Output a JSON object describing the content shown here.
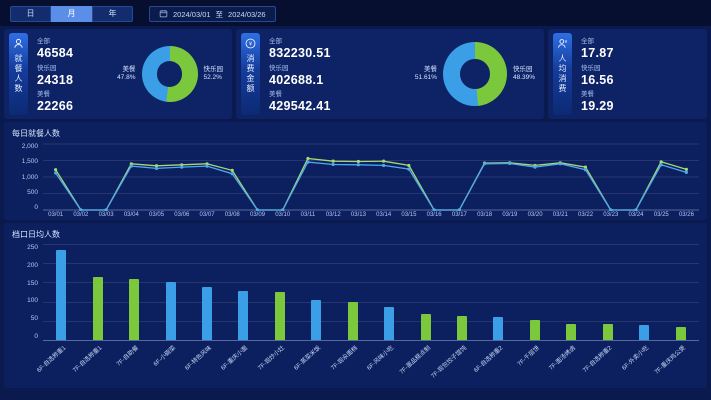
{
  "colors": {
    "accent_blue": "#3B9FE8",
    "accent_green": "#7CC83D",
    "line_blue": "#4FA8EC",
    "line_green": "#A6D970"
  },
  "topbar": {
    "period_tabs": [
      {
        "label": "日",
        "active": false
      },
      {
        "label": "月",
        "active": true
      },
      {
        "label": "年",
        "active": false
      }
    ],
    "date_start": "2024/03/01",
    "date_separator": "至",
    "date_end": "2024/03/26"
  },
  "kpi_panels": [
    {
      "title": "就餐人数",
      "icon": "diners-icon",
      "stats": [
        {
          "label": "全部",
          "value": "46584"
        },
        {
          "label": "快乐园",
          "value": "24318"
        },
        {
          "label": "美餐",
          "value": "22266"
        }
      ],
      "donut": {
        "size": 56,
        "slices": [
          {
            "label": "快乐园",
            "pct": "52.2%",
            "value": 52.2,
            "color_key": "accent_green",
            "side": "right"
          },
          {
            "label": "美餐",
            "pct": "47.8%",
            "value": 47.8,
            "color_key": "accent_blue",
            "side": "left"
          }
        ]
      }
    },
    {
      "title": "消费金额",
      "icon": "amount-icon",
      "stats": [
        {
          "label": "全部",
          "value": "832230.51"
        },
        {
          "label": "快乐园",
          "value": "402688.1"
        },
        {
          "label": "美餐",
          "value": "429542.41"
        }
      ],
      "donut": {
        "size": 64,
        "slices": [
          {
            "label": "快乐园",
            "pct": "48.39%",
            "value": 48.39,
            "color_key": "accent_green",
            "side": "right"
          },
          {
            "label": "美餐",
            "pct": "51.61%",
            "value": 51.61,
            "color_key": "accent_blue",
            "side": "left"
          }
        ]
      }
    },
    {
      "title": "人均消费",
      "icon": "per-capita-icon",
      "stats": [
        {
          "label": "全部",
          "value": "17.87"
        },
        {
          "label": "快乐园",
          "value": "16.56"
        },
        {
          "label": "美餐",
          "value": "19.29"
        }
      ],
      "donut": null
    }
  ],
  "chart_data": [
    {
      "type": "line",
      "title": "每日就餐人数",
      "x": [
        "03/01",
        "03/02",
        "03/03",
        "03/04",
        "03/05",
        "03/06",
        "03/07",
        "03/08",
        "03/09",
        "03/10",
        "03/11",
        "03/12",
        "03/13",
        "03/14",
        "03/15",
        "03/16",
        "03/17",
        "03/18",
        "03/19",
        "03/20",
        "03/21",
        "03/22",
        "03/23",
        "03/24",
        "03/25",
        "03/26"
      ],
      "yticks": [
        "2,000",
        "1,500",
        "1,000",
        "500",
        "0"
      ],
      "ylim": [
        0,
        2000
      ],
      "grid": true,
      "legend": null,
      "series": [
        {
          "name": "green",
          "color_key": "line_green",
          "values": [
            1220,
            0,
            0,
            1400,
            1340,
            1370,
            1400,
            1200,
            0,
            0,
            1560,
            1480,
            1470,
            1480,
            1350,
            0,
            0,
            1420,
            1430,
            1350,
            1430,
            1300,
            0,
            0,
            1460,
            1230
          ]
        },
        {
          "name": "blue",
          "color_key": "line_blue",
          "values": [
            1120,
            0,
            0,
            1330,
            1260,
            1300,
            1330,
            1100,
            0,
            0,
            1450,
            1380,
            1370,
            1350,
            1240,
            0,
            0,
            1400,
            1410,
            1300,
            1400,
            1220,
            0,
            0,
            1370,
            1140
          ]
        }
      ]
    },
    {
      "type": "bar",
      "title": "档口日均人数",
      "yticks": [
        "250",
        "200",
        "150",
        "100",
        "50",
        "0"
      ],
      "ylim": [
        0,
        250
      ],
      "categories": [
        "6F-自选称重1",
        "7F-自选称重1",
        "7F-自助餐",
        "6F-小碗菜",
        "6F-特色风味",
        "6F-重庆小面",
        "7F-现炒小灶",
        "6F-蒸菜米饭",
        "7F-现汆面档",
        "6F-风味小吃",
        "7F-蛋品糕点制",
        "7F-现包饺子馄饨",
        "6F-自选称重2",
        "7F-千层饼",
        "7F-面汤烤卤",
        "7F-自选称重2",
        "6F-外卖小吃",
        "7F-重庆鸡公煲"
      ],
      "values": [
        235,
        165,
        158,
        150,
        137,
        128,
        125,
        105,
        100,
        87,
        67,
        62,
        60,
        53,
        43,
        42,
        38,
        33
      ],
      "bar_colors": [
        "accent_blue",
        "accent_green",
        "accent_green",
        "accent_blue",
        "accent_blue",
        "accent_blue",
        "accent_green",
        "accent_blue",
        "accent_green",
        "accent_blue",
        "accent_green",
        "accent_green",
        "accent_blue",
        "accent_green",
        "accent_green",
        "accent_green",
        "accent_blue",
        "accent_green"
      ]
    }
  ]
}
